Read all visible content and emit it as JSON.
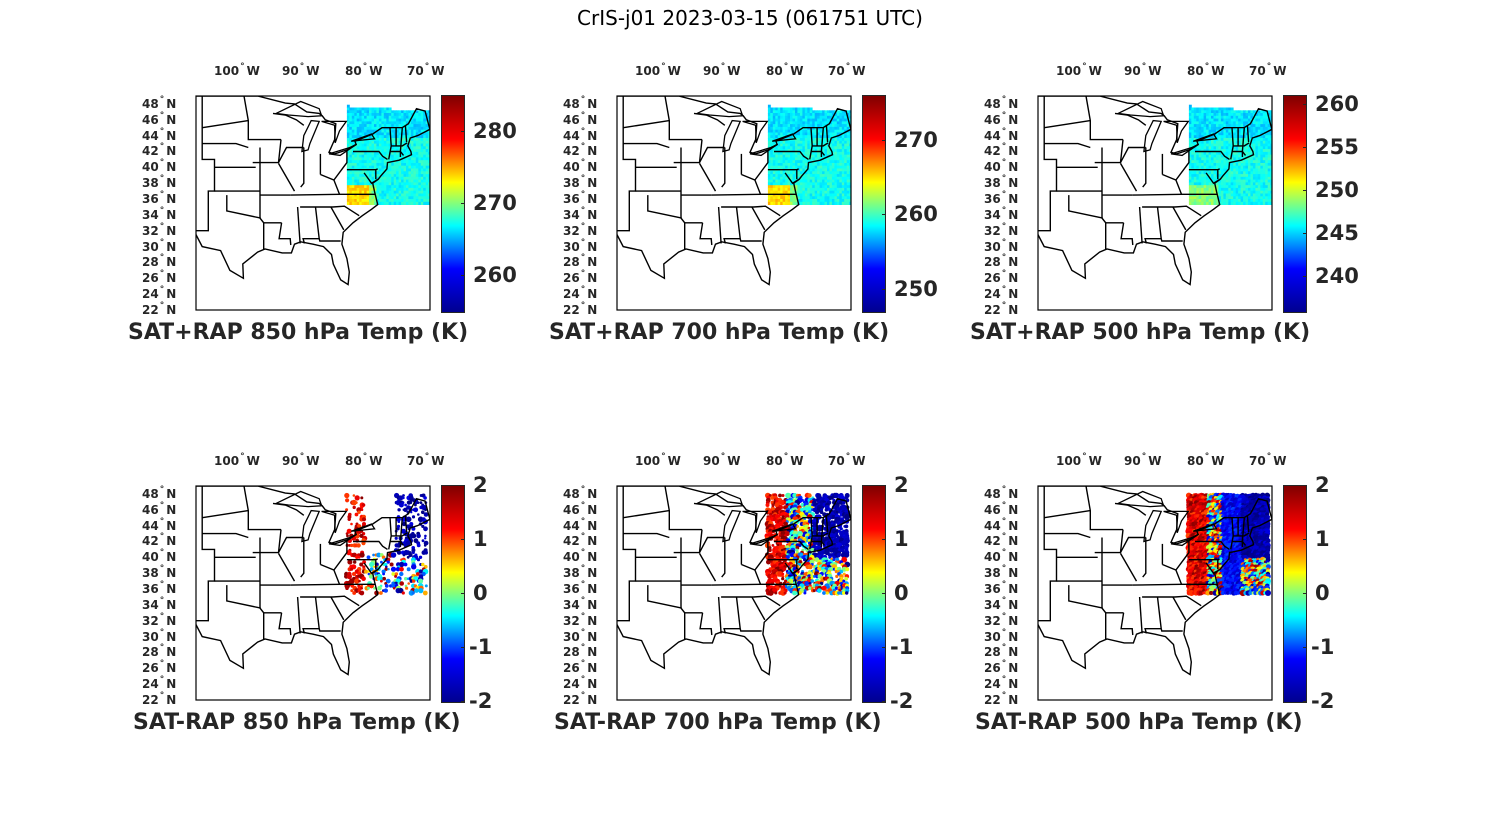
{
  "title": "CrIS-j01 2023-03-15 (061751 UTC)",
  "longitude_labels": [
    {
      "deg": "100",
      "hemi": "W"
    },
    {
      "deg": "90",
      "hemi": "W"
    },
    {
      "deg": "80",
      "hemi": "W"
    },
    {
      "deg": "70",
      "hemi": "W"
    }
  ],
  "latitude_labels": [
    {
      "deg": "48",
      "hemi": "N"
    },
    {
      "deg": "46",
      "hemi": "N"
    },
    {
      "deg": "44",
      "hemi": "N"
    },
    {
      "deg": "42",
      "hemi": "N"
    },
    {
      "deg": "40",
      "hemi": "N"
    },
    {
      "deg": "38",
      "hemi": "N"
    },
    {
      "deg": "36",
      "hemi": "N"
    },
    {
      "deg": "34",
      "hemi": "N"
    },
    {
      "deg": "32",
      "hemi": "N"
    },
    {
      "deg": "30",
      "hemi": "N"
    },
    {
      "deg": "28",
      "hemi": "N"
    },
    {
      "deg": "26",
      "hemi": "N"
    },
    {
      "deg": "24",
      "hemi": "N"
    },
    {
      "deg": "22",
      "hemi": "N"
    }
  ],
  "colormap": "jet",
  "colormap_stops": [
    "#00008f",
    "#0000ff",
    "#00ffff",
    "#ffff00",
    "#ff0000",
    "#800000"
  ],
  "panels": [
    {
      "id": "sat-rap-sum-850",
      "title": "SAT+RAP 850 hPa Temp (K)",
      "colorbar_ticks": [
        "280",
        "270",
        "260"
      ],
      "range": [
        255,
        285
      ],
      "field": "swath-low"
    },
    {
      "id": "sat-rap-sum-700",
      "title": "SAT+RAP 700 hPa Temp (K)",
      "colorbar_ticks": [
        "270",
        "260",
        "250"
      ],
      "range": [
        247,
        276
      ],
      "field": "swath-low"
    },
    {
      "id": "sat-rap-sum-500",
      "title": "SAT+RAP 500 hPa Temp (K)",
      "colorbar_ticks": [
        "260",
        "255",
        "250",
        "245",
        "240"
      ],
      "range": [
        236,
        261
      ],
      "field": "swath-low"
    },
    {
      "id": "sat-rap-diff-850",
      "title": "SAT-RAP 850 hPa Temp (K)",
      "colorbar_ticks": [
        "2",
        "1",
        "0",
        "-1",
        "-2"
      ],
      "range": [
        -2,
        2
      ],
      "field": "diff-sparse"
    },
    {
      "id": "sat-rap-diff-700",
      "title": "SAT-RAP 700 hPa Temp (K)",
      "colorbar_ticks": [
        "2",
        "1",
        "0",
        "-1",
        "-2"
      ],
      "range": [
        -2,
        2
      ],
      "field": "diff-medium"
    },
    {
      "id": "sat-rap-diff-500",
      "title": "SAT-RAP 500 hPa Temp (K)",
      "colorbar_ticks": [
        "2",
        "1",
        "0",
        "-1",
        "-2"
      ],
      "range": [
        -2,
        2
      ],
      "field": "diff-dense"
    }
  ]
}
